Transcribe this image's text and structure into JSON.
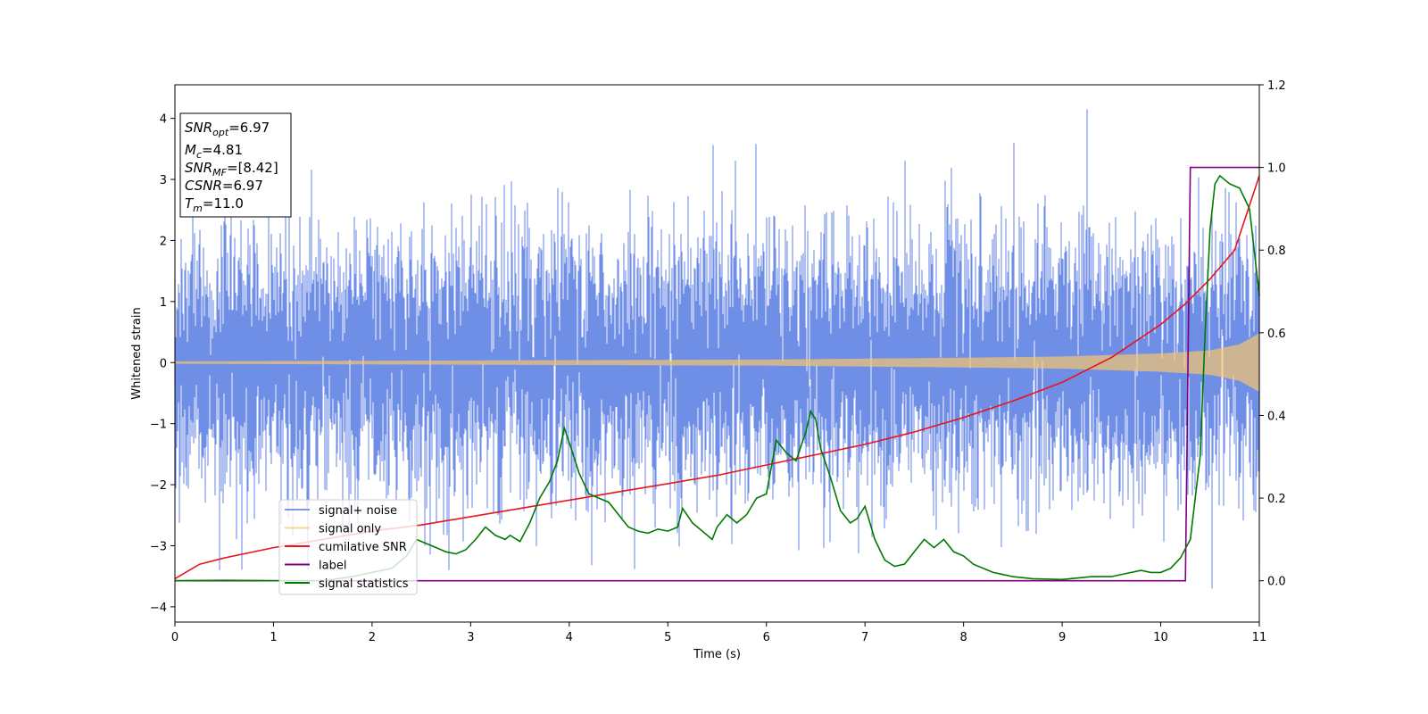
{
  "chart_data": {
    "type": "line",
    "title": "",
    "xlabel": "Time (s)",
    "ylabel": "Whitened strain",
    "xlim": [
      0,
      11
    ],
    "ylim_left": [
      -4.25,
      4.55
    ],
    "ylim_right": [
      -0.1,
      1.2
    ],
    "x_ticks": [
      0,
      1,
      2,
      3,
      4,
      5,
      6,
      7,
      8,
      9,
      10,
      11
    ],
    "y_ticks_left": [
      -4,
      -3,
      -2,
      -1,
      0,
      1,
      2,
      3,
      4
    ],
    "y_ticks_right": [
      0.0,
      0.2,
      0.4,
      0.6,
      0.8,
      1.0,
      1.2
    ],
    "grid": false,
    "legend_placement": "lower-left",
    "colors": {
      "signal_noise": "#6f8ee6",
      "signal_only": "#f5c46e",
      "cumulative_snr": "#e8151b",
      "label": "#800080",
      "signal_statistics": "#007a00"
    },
    "annotation": {
      "snr_opt": {
        "base": "SNR",
        "sub": "opt",
        "value": "=6.97"
      },
      "mc": {
        "base": "M",
        "sub": "c",
        "value": "=4.81"
      },
      "snr_mf": {
        "base": "SNR",
        "sub": "MF",
        "value": "=[8.42]"
      },
      "csnr": {
        "base": "CSNR",
        "value": "=6.97"
      },
      "tm": {
        "base": "T",
        "sub": "m",
        "value": "=11.0"
      }
    },
    "series": [
      {
        "name": "signal+ noise",
        "axis": "left",
        "kind": "white-noise-plus-chirp",
        "noise_std": 1.0,
        "visible_peaks": {
          "max": 4.15,
          "min": -3.7
        }
      },
      {
        "name": "signal only",
        "axis": "left",
        "kind": "chirp",
        "envelope": {
          "x": [
            0,
            2,
            4,
            6,
            8,
            9,
            10,
            10.5,
            10.8,
            11
          ],
          "y": [
            0.02,
            0.03,
            0.04,
            0.05,
            0.08,
            0.1,
            0.15,
            0.2,
            0.3,
            0.48
          ]
        }
      },
      {
        "name": "cumilative SNR",
        "axis": "right",
        "x": [
          0,
          0.25,
          0.5,
          1,
          1.5,
          2,
          2.5,
          3,
          3.5,
          4,
          4.5,
          5,
          5.5,
          6,
          6.5,
          7,
          7.5,
          8,
          8.5,
          9,
          9.5,
          10,
          10.25,
          10.5,
          10.75,
          11
        ],
        "y": [
          0.005,
          0.04,
          0.055,
          0.08,
          0.1,
          0.12,
          0.135,
          0.155,
          0.175,
          0.195,
          0.215,
          0.235,
          0.255,
          0.28,
          0.305,
          0.33,
          0.36,
          0.395,
          0.435,
          0.48,
          0.54,
          0.62,
          0.67,
          0.73,
          0.8,
          0.98
        ]
      },
      {
        "name": "label",
        "axis": "right",
        "x": [
          0,
          10.25,
          10.3,
          11
        ],
        "y": [
          0,
          0,
          1,
          1
        ]
      },
      {
        "name": "signal statistics",
        "axis": "right",
        "x": [
          0,
          0.5,
          1,
          1.5,
          1.8,
          2.0,
          2.2,
          2.35,
          2.45,
          2.55,
          2.65,
          2.75,
          2.85,
          2.95,
          3.05,
          3.15,
          3.25,
          3.35,
          3.4,
          3.5,
          3.6,
          3.7,
          3.8,
          3.88,
          3.95,
          4.02,
          4.1,
          4.2,
          4.3,
          4.4,
          4.5,
          4.6,
          4.7,
          4.8,
          4.9,
          5.0,
          5.1,
          5.15,
          5.25,
          5.35,
          5.45,
          5.5,
          5.6,
          5.7,
          5.8,
          5.9,
          6.0,
          6.1,
          6.2,
          6.3,
          6.4,
          6.45,
          6.5,
          6.55,
          6.65,
          6.75,
          6.85,
          6.92,
          7.0,
          7.1,
          7.2,
          7.3,
          7.4,
          7.5,
          7.6,
          7.7,
          7.8,
          7.9,
          8.0,
          8.1,
          8.2,
          8.3,
          8.4,
          8.5,
          8.7,
          9.0,
          9.3,
          9.5,
          9.7,
          9.8,
          9.9,
          10.0,
          10.1,
          10.2,
          10.3,
          10.4,
          10.45,
          10.5,
          10.55,
          10.6,
          10.7,
          10.8,
          10.9,
          11.0
        ],
        "y": [
          0.0,
          0.001,
          0.0,
          0.0,
          0.01,
          0.02,
          0.03,
          0.06,
          0.1,
          0.09,
          0.08,
          0.07,
          0.065,
          0.075,
          0.1,
          0.13,
          0.11,
          0.1,
          0.11,
          0.095,
          0.14,
          0.2,
          0.24,
          0.29,
          0.37,
          0.32,
          0.26,
          0.21,
          0.2,
          0.19,
          0.16,
          0.13,
          0.12,
          0.115,
          0.125,
          0.12,
          0.13,
          0.175,
          0.14,
          0.12,
          0.1,
          0.13,
          0.16,
          0.14,
          0.16,
          0.2,
          0.21,
          0.34,
          0.31,
          0.29,
          0.36,
          0.41,
          0.39,
          0.32,
          0.25,
          0.17,
          0.14,
          0.15,
          0.18,
          0.1,
          0.05,
          0.035,
          0.04,
          0.07,
          0.1,
          0.08,
          0.1,
          0.07,
          0.06,
          0.04,
          0.03,
          0.02,
          0.015,
          0.01,
          0.005,
          0.003,
          0.01,
          0.01,
          0.02,
          0.025,
          0.02,
          0.02,
          0.03,
          0.055,
          0.1,
          0.3,
          0.6,
          0.85,
          0.96,
          0.98,
          0.96,
          0.95,
          0.9,
          0.69
        ]
      }
    ]
  }
}
